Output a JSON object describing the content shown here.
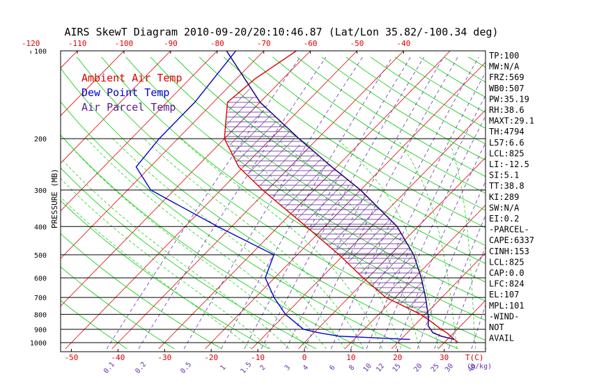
{
  "chart_data": {
    "type": "line",
    "title": "AIRS SkewT Diagram 2010-09-20/20:10:46.87 (Lat/Lon 35.82/-100.34 deg)",
    "ylabel": "PRESSURE (MB)",
    "x_unit_label": "T(C)",
    "mixing_ratio_unit_label": "(g/kg)",
    "pressure_levels": [
      100,
      200,
      300,
      400,
      500,
      600,
      700,
      800,
      900,
      1000
    ],
    "ylim": [
      1000,
      100
    ],
    "y_scale": "log",
    "bottom_temp_ticks": [
      -50,
      -40,
      -30,
      -20,
      -10,
      0,
      10,
      20,
      30
    ],
    "top_temp_ticks": [
      -120,
      -110,
      -100,
      -90,
      -80,
      -70,
      -60,
      -50,
      -40
    ],
    "mixing_ratio_labels": [
      "0.1",
      "0.2",
      "0.5",
      "1",
      "1.5",
      "2",
      "3",
      "4",
      "6",
      "8",
      "10",
      "12",
      "15",
      "20",
      "25",
      "30",
      "40"
    ],
    "legend": [
      "Ambient Air Temp",
      "Dew Point Temp",
      "Air Parcel Temp"
    ],
    "colors": {
      "ambient": "#dd0000",
      "dewpoint": "#0000cc",
      "parcel": "#2a0a7a",
      "isotherm": "#dd0000",
      "dry_adiabat": "#00cc00",
      "moist_adiabat": "#00cc00",
      "mixing_ratio": "#6633aa",
      "hatch": "#5a1a8a"
    },
    "series": [
      {
        "name": "Ambient Air Temp",
        "points": [
          [
            1000,
            33
          ],
          [
            975,
            31.5
          ],
          [
            950,
            30
          ],
          [
            925,
            28.5
          ],
          [
            900,
            26.5
          ],
          [
            850,
            23
          ],
          [
            800,
            19
          ],
          [
            700,
            8
          ],
          [
            600,
            -1
          ],
          [
            500,
            -11
          ],
          [
            400,
            -24
          ],
          [
            300,
            -41
          ],
          [
            250,
            -51
          ],
          [
            200,
            -60
          ],
          [
            150,
            -67
          ],
          [
            125,
            -66
          ],
          [
            100,
            -63
          ]
        ]
      },
      {
        "name": "Dew Point Temp",
        "points": [
          [
            975,
            22
          ],
          [
            950,
            6
          ],
          [
            925,
            1
          ],
          [
            900,
            -3
          ],
          [
            800,
            -10
          ],
          [
            700,
            -16
          ],
          [
            600,
            -22
          ],
          [
            500,
            -25
          ],
          [
            400,
            -43
          ],
          [
            300,
            -65
          ],
          [
            250,
            -73
          ],
          [
            200,
            -74
          ],
          [
            150,
            -74
          ],
          [
            100,
            -76
          ]
        ]
      },
      {
        "name": "Air Parcel Temp",
        "points": [
          [
            975,
            31.5
          ],
          [
            950,
            28
          ],
          [
            925,
            25.5
          ],
          [
            875,
            23
          ],
          [
            825,
            21.5
          ],
          [
            800,
            20.6
          ],
          [
            700,
            16.5
          ],
          [
            600,
            11.5
          ],
          [
            500,
            5
          ],
          [
            400,
            -4.5
          ],
          [
            300,
            -20
          ],
          [
            250,
            -31
          ],
          [
            200,
            -44
          ],
          [
            150,
            -60
          ],
          [
            100,
            -78
          ]
        ]
      }
    ],
    "indices": [
      "TP:100",
      "MW:N/A",
      "FRZ:569",
      "WB0:507",
      "PW:35.19",
      "RH:38.6",
      "MAXT:29.1",
      "TH:4794",
      "L57:6.6",
      "LCL:825",
      "LI:-12.5",
      "SI:5.1",
      "TT:38.8",
      "KI:289",
      "SW:N/A",
      "EI:0.2",
      "-PARCEL-",
      "CAPE:6337",
      "CINH:153",
      "LCL:825",
      "CAP:0.0",
      "LFC:824",
      "EL:107",
      "MPL:101",
      "-WIND-",
      "NOT",
      "AVAIL"
    ]
  }
}
